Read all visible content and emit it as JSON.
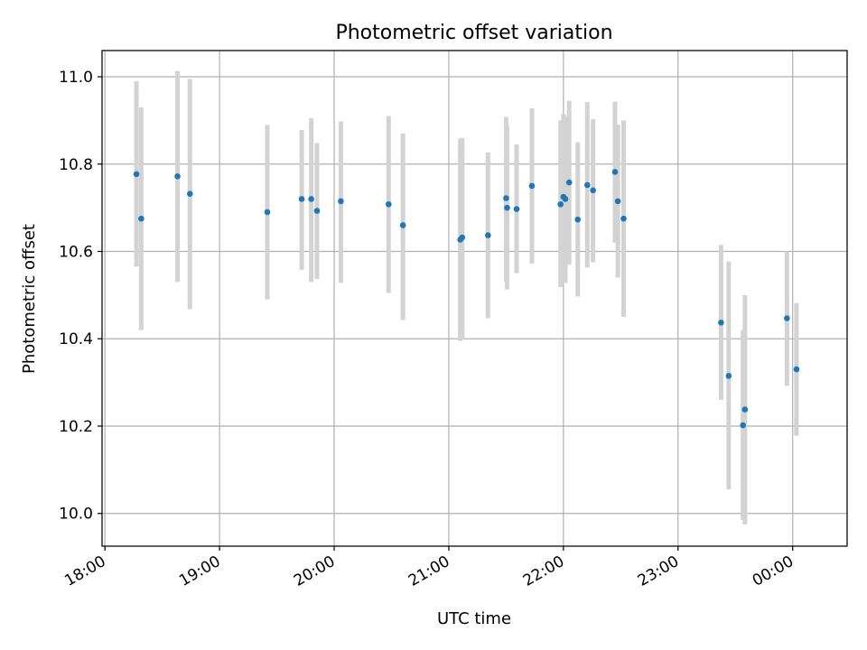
{
  "chart_data": {
    "type": "scatter",
    "title": "Photometric offset variation",
    "xlabel": "UTC time",
    "ylabel": "Photometric offset",
    "x_unit": "minutes from 18:00 UTC",
    "xlim": [
      -1.5,
      388.5
    ],
    "ylim": [
      9.925,
      11.06
    ],
    "grid": true,
    "colors": {
      "points": "#1f77b4",
      "errorbars": "#d3d3d3",
      "grid": "#b0b0b0"
    },
    "x_ticks": [
      {
        "value": 0,
        "label": "18:00"
      },
      {
        "value": 60,
        "label": "19:00"
      },
      {
        "value": 120,
        "label": "20:00"
      },
      {
        "value": 180,
        "label": "21:00"
      },
      {
        "value": 240,
        "label": "22:00"
      },
      {
        "value": 300,
        "label": "23:00"
      },
      {
        "value": 360,
        "label": "00:00"
      }
    ],
    "y_ticks": [
      {
        "value": 10.0,
        "label": "10.0"
      },
      {
        "value": 10.2,
        "label": "10.2"
      },
      {
        "value": 10.4,
        "label": "10.4"
      },
      {
        "value": 10.6,
        "label": "10.6"
      },
      {
        "value": 10.8,
        "label": "10.8"
      },
      {
        "value": 11.0,
        "label": "11.0"
      }
    ],
    "points": [
      {
        "x": 16.5,
        "y": 10.777,
        "err_low": 10.565,
        "err_high": 10.99
      },
      {
        "x": 19.0,
        "y": 10.675,
        "err_low": 10.42,
        "err_high": 10.93
      },
      {
        "x": 38.0,
        "y": 10.772,
        "err_low": 10.53,
        "err_high": 11.013
      },
      {
        "x": 44.5,
        "y": 10.732,
        "err_low": 10.468,
        "err_high": 10.995
      },
      {
        "x": 85.0,
        "y": 10.69,
        "err_low": 10.49,
        "err_high": 10.89
      },
      {
        "x": 103.0,
        "y": 10.72,
        "err_low": 10.558,
        "err_high": 10.878
      },
      {
        "x": 108.0,
        "y": 10.72,
        "err_low": 10.53,
        "err_high": 10.905
      },
      {
        "x": 111.0,
        "y": 10.693,
        "err_low": 10.537,
        "err_high": 10.848
      },
      {
        "x": 123.5,
        "y": 10.715,
        "err_low": 10.528,
        "err_high": 10.898
      },
      {
        "x": 148.5,
        "y": 10.708,
        "err_low": 10.505,
        "err_high": 10.91
      },
      {
        "x": 156.0,
        "y": 10.66,
        "err_low": 10.443,
        "err_high": 10.87
      },
      {
        "x": 186.0,
        "y": 10.627,
        "err_low": 10.395,
        "err_high": 10.858
      },
      {
        "x": 187.0,
        "y": 10.632,
        "err_low": 10.398,
        "err_high": 10.86
      },
      {
        "x": 200.5,
        "y": 10.637,
        "err_low": 10.447,
        "err_high": 10.827
      },
      {
        "x": 210.0,
        "y": 10.722,
        "err_low": 10.53,
        "err_high": 10.908
      },
      {
        "x": 210.5,
        "y": 10.7,
        "err_low": 10.513,
        "err_high": 10.888
      },
      {
        "x": 215.5,
        "y": 10.697,
        "err_low": 10.55,
        "err_high": 10.845
      },
      {
        "x": 223.5,
        "y": 10.75,
        "err_low": 10.572,
        "err_high": 10.928
      },
      {
        "x": 238.5,
        "y": 10.708,
        "err_low": 10.518,
        "err_high": 10.9
      },
      {
        "x": 240.0,
        "y": 10.725,
        "err_low": 10.53,
        "err_high": 10.915
      },
      {
        "x": 241.0,
        "y": 10.72,
        "err_low": 10.528,
        "err_high": 10.91
      },
      {
        "x": 243.0,
        "y": 10.758,
        "err_low": 10.57,
        "err_high": 10.945
      },
      {
        "x": 247.5,
        "y": 10.673,
        "err_low": 10.497,
        "err_high": 10.85
      },
      {
        "x": 252.5,
        "y": 10.752,
        "err_low": 10.563,
        "err_high": 10.942
      },
      {
        "x": 255.5,
        "y": 10.74,
        "err_low": 10.575,
        "err_high": 10.903
      },
      {
        "x": 267.0,
        "y": 10.782,
        "err_low": 10.62,
        "err_high": 10.943
      },
      {
        "x": 268.5,
        "y": 10.715,
        "err_low": 10.54,
        "err_high": 10.89
      },
      {
        "x": 271.5,
        "y": 10.675,
        "err_low": 10.45,
        "err_high": 10.9
      },
      {
        "x": 322.5,
        "y": 10.437,
        "err_low": 10.26,
        "err_high": 10.615
      },
      {
        "x": 326.5,
        "y": 10.315,
        "err_low": 10.055,
        "err_high": 10.577
      },
      {
        "x": 334.0,
        "y": 10.202,
        "err_low": 9.985,
        "err_high": 10.42
      },
      {
        "x": 335.0,
        "y": 10.238,
        "err_low": 9.975,
        "err_high": 10.5
      },
      {
        "x": 357.0,
        "y": 10.447,
        "err_low": 10.292,
        "err_high": 10.6
      },
      {
        "x": 362.0,
        "y": 10.33,
        "err_low": 10.178,
        "err_high": 10.482
      }
    ]
  }
}
